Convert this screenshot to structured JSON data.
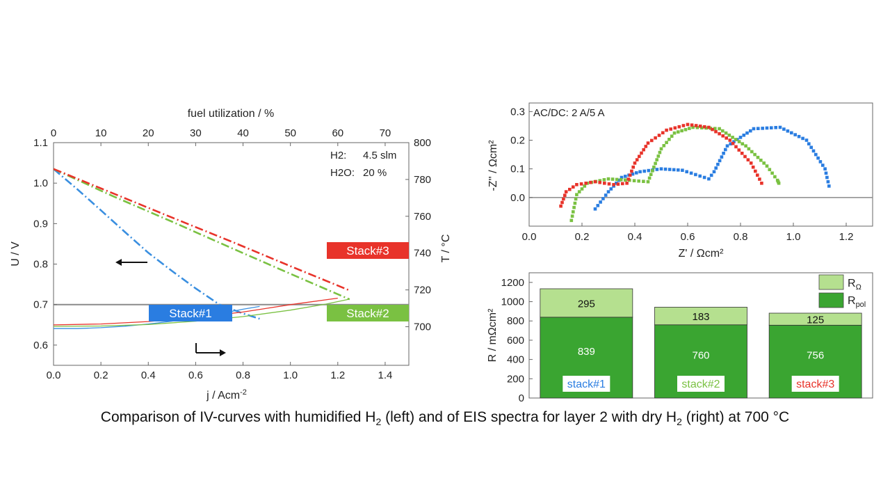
{
  "caption": {
    "part1": "Comparison of IV-curves with humidified H",
    "sub1": "2",
    "part2": " (left) and of EIS spectra for layer 2 with dry H",
    "sub2": "2",
    "part3": " (right) at 700 °C"
  },
  "chart_data": [
    {
      "id": "iv",
      "type": "line",
      "xlabel": "j / Acm",
      "xlabel_sup": "-2",
      "ylabel": "U / V",
      "y2label": "T / °C",
      "x2label": "fuel utilization / %",
      "xlim": [
        0,
        1.5
      ],
      "ylim": [
        0.55,
        1.1
      ],
      "y2lim": [
        690,
        800
      ],
      "x2lim": [
        0,
        75
      ],
      "xticks": [
        "0.0",
        "0.2",
        "0.4",
        "0.6",
        "0.8",
        "1.0",
        "1.2",
        "1.4"
      ],
      "yticks": [
        "0.6",
        "0.7",
        "0.8",
        "0.9",
        "1.0",
        "1.1"
      ],
      "y2ticks": [
        "700",
        "720",
        "740",
        "760",
        "780",
        "800"
      ],
      "x2ticks": [
        "0",
        "10",
        "20",
        "30",
        "40",
        "50",
        "60",
        "70"
      ],
      "conditions": [
        {
          "label": "H2:",
          "value": "4.5 slm"
        },
        {
          "label": "H2O:",
          "value": "20  %"
        }
      ],
      "reference_line": {
        "y": 0.7,
        "color": "#8a8a8a"
      },
      "stack_labels": [
        {
          "text": "Stack#1",
          "color": "#2a7de1"
        },
        {
          "text": "Stack#2",
          "color": "#7ac142"
        },
        {
          "text": "Stack#3",
          "color": "#e8332a"
        }
      ],
      "voltage_series": [
        {
          "name": "Stack#1",
          "color": "#3a8fe0",
          "x": [
            0,
            0.1,
            0.2,
            0.3,
            0.4,
            0.5,
            0.6,
            0.7,
            0.8,
            0.87
          ],
          "y": [
            1.035,
            0.985,
            0.933,
            0.88,
            0.828,
            0.783,
            0.74,
            0.7,
            0.678,
            0.665
          ]
        },
        {
          "name": "Stack#2",
          "color": "#7ac142",
          "x": [
            0,
            0.25,
            0.5,
            0.75,
            1.0,
            1.25
          ],
          "y": [
            1.035,
            0.968,
            0.905,
            0.84,
            0.776,
            0.713
          ]
        },
        {
          "name": "Stack#3",
          "color": "#e8332a",
          "x": [
            0,
            0.25,
            0.5,
            0.75,
            1.0,
            1.25
          ],
          "y": [
            1.035,
            0.975,
            0.915,
            0.856,
            0.795,
            0.735
          ]
        }
      ],
      "temperature_series": [
        {
          "name": "Stack#1",
          "color": "#3a8fe0",
          "x": [
            0,
            0.1,
            0.2,
            0.3,
            0.4,
            0.5,
            0.6,
            0.7,
            0.8,
            0.87
          ],
          "y": [
            699,
            699,
            699.5,
            700.3,
            701.5,
            703,
            705,
            707,
            709.5,
            711
          ]
        },
        {
          "name": "Stack#2",
          "color": "#7ac142",
          "x": [
            0,
            0.2,
            0.4,
            0.6,
            0.8,
            1.0,
            1.15,
            1.25
          ],
          "y": [
            700.2,
            700.4,
            701.2,
            703,
            705.5,
            709,
            712.3,
            715
          ]
        },
        {
          "name": "Stack#3",
          "color": "#e8332a",
          "x": [
            0,
            0.2,
            0.4,
            0.6,
            0.8,
            1.0,
            1.2
          ],
          "y": [
            701,
            701.5,
            702.8,
            705,
            708,
            712,
            715.5
          ]
        }
      ]
    },
    {
      "id": "eis",
      "type": "scatter",
      "title": "AC/DC: 2 A/5 A",
      "xlabel": "Z' / Ωcm²",
      "ylabel": "-Z'' / Ωcm²",
      "xlim": [
        0,
        1.3
      ],
      "ylim": [
        -0.1,
        0.33
      ],
      "xticks": [
        "0.0",
        "0.2",
        "0.4",
        "0.6",
        "0.8",
        "1.0",
        "1.2"
      ],
      "yticks": [
        "0.0",
        "0.1",
        "0.2",
        "0.3"
      ],
      "series": [
        {
          "name": "stack#1",
          "color": "#2a7de1",
          "x": [
            0.25,
            0.3,
            0.35,
            0.42,
            0.5,
            0.58,
            0.63,
            0.68,
            0.7,
            0.75,
            0.85,
            0.95,
            1.05,
            1.12,
            1.135
          ],
          "y": [
            -0.04,
            0.02,
            0.07,
            0.09,
            0.1,
            0.095,
            0.08,
            0.065,
            0.09,
            0.18,
            0.24,
            0.245,
            0.2,
            0.1,
            0.04
          ]
        },
        {
          "name": "stack#2",
          "color": "#7ac142",
          "x": [
            0.16,
            0.18,
            0.22,
            0.3,
            0.38,
            0.45,
            0.5,
            0.55,
            0.62,
            0.72,
            0.82,
            0.9,
            0.94,
            0.945
          ],
          "y": [
            -0.08,
            0.01,
            0.05,
            0.065,
            0.06,
            0.055,
            0.17,
            0.225,
            0.245,
            0.24,
            0.18,
            0.11,
            0.06,
            0.05
          ]
        },
        {
          "name": "stack#3",
          "color": "#e8332a",
          "x": [
            0.12,
            0.14,
            0.18,
            0.25,
            0.32,
            0.37,
            0.4,
            0.45,
            0.52,
            0.6,
            0.68,
            0.76,
            0.84,
            0.88
          ],
          "y": [
            -0.03,
            0.02,
            0.045,
            0.055,
            0.045,
            0.05,
            0.12,
            0.19,
            0.235,
            0.255,
            0.245,
            0.2,
            0.12,
            0.05
          ]
        }
      ]
    },
    {
      "id": "resistance",
      "type": "bar",
      "ylabel": "R / mΩcm²",
      "ylim": [
        0,
        1300
      ],
      "yticks": [
        "0",
        "200",
        "400",
        "600",
        "800",
        "1000",
        "1200"
      ],
      "categories": [
        "stack#1",
        "stack#2",
        "stack#3"
      ],
      "category_colors": [
        "#2a7de1",
        "#7ac142",
        "#e8332a"
      ],
      "legend": [
        {
          "name": "R",
          "sub": "Ω",
          "color": "#b5e08f"
        },
        {
          "name": "R",
          "sub": "pol",
          "color": "#3aa531"
        }
      ],
      "series": [
        {
          "name": "Rpol",
          "color": "#3aa531",
          "values": [
            839,
            760,
            756
          ]
        },
        {
          "name": "RΩ",
          "color": "#b5e08f",
          "values": [
            295,
            183,
            125
          ]
        }
      ]
    }
  ]
}
